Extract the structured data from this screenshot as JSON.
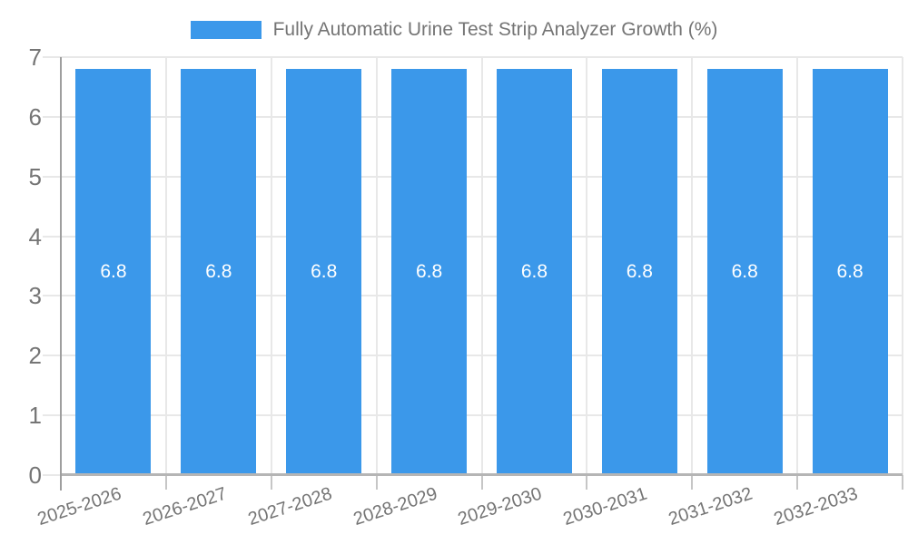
{
  "chart_data": {
    "type": "bar",
    "title": "Fully Automatic Urine Test Strip Analyzer Growth (%)",
    "legend": {
      "label": "Fully Automatic Urine Test Strip Analyzer Growth (%)",
      "position": "top"
    },
    "categories": [
      "2025-2026",
      "2026-2027",
      "2027-2028",
      "2028-2029",
      "2029-2030",
      "2030-2031",
      "2031-2032",
      "2032-2033"
    ],
    "series": [
      {
        "name": "Fully Automatic Urine Test Strip Analyzer Growth (%)",
        "values": [
          6.8,
          6.8,
          6.8,
          6.8,
          6.8,
          6.8,
          6.8,
          6.8
        ]
      }
    ],
    "bar_labels": [
      "6.8",
      "6.8",
      "6.8",
      "6.8",
      "6.8",
      "6.8",
      "6.8",
      "6.8"
    ],
    "xlabel": "",
    "ylabel": "",
    "ylim": [
      0,
      7
    ],
    "yticks": [
      0,
      1,
      2,
      3,
      4,
      5,
      6,
      7
    ],
    "grid": true,
    "value_labels_inside_bars": true
  },
  "colors": {
    "bar": "#3b98ea",
    "value_label": "#ffffff",
    "axis_text": "#757575",
    "legend_text": "#757575",
    "gridline": "#e8e8e8",
    "axis_line": "#b5b5b5",
    "y_axis_line": "#9e9e9e",
    "tick": "#c6c6c6",
    "background": "#ffffff"
  }
}
